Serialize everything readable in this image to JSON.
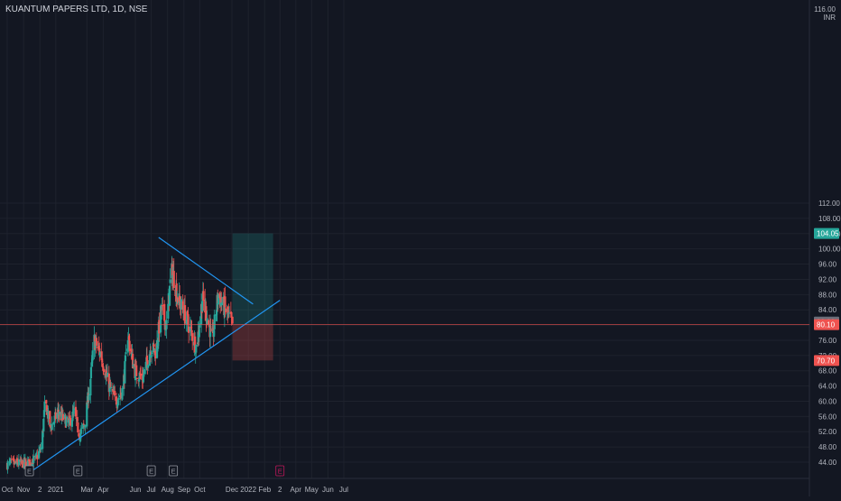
{
  "header": {
    "symbol_title": "KUANTUM PAPERS LTD, 1D, NSE",
    "top_price_label": "116.00",
    "currency": "INR"
  },
  "chart_data": {
    "type": "candlestick",
    "timeframe": "1D",
    "exchange": "NSE",
    "ylim": [
      42,
      116
    ],
    "y_ticks": [
      44,
      48,
      52,
      56,
      60,
      64,
      68,
      72,
      76,
      80,
      84,
      88,
      92,
      96,
      100,
      104,
      108,
      112
    ],
    "x_ticks": [
      "Oct",
      "Nov",
      "2",
      "2021",
      "Mar",
      "Apr",
      "Jun",
      "Jul",
      "Aug",
      "Sep",
      "Oct",
      "Dec",
      "2022",
      "Feb",
      "2",
      "Apr",
      "May",
      "Jun",
      "Jul"
    ],
    "x_tick_dates": [
      "2020-10-01",
      "2020-11-01",
      "2020-12-02",
      "2021-01-01",
      "2021-03-01",
      "2021-04-01",
      "2021-06-01",
      "2021-07-01",
      "2021-08-01",
      "2021-09-01",
      "2021-10-01",
      "2021-12-01",
      "2022-01-01",
      "2022-02-01",
      "2022-03-02",
      "2022-04-01",
      "2022-05-01",
      "2022-06-01",
      "2022-07-01"
    ],
    "earnings_markers": [
      "2020-11-12",
      "2021-02-12",
      "2021-07-01",
      "2021-08-12",
      "2022-03-02"
    ],
    "earnings_label": "E",
    "price_path": [
      [
        "2020-10-01",
        43.5
      ],
      [
        "2020-11-10",
        43.8
      ],
      [
        "2020-11-25",
        45.0
      ],
      [
        "2020-12-05",
        48.0
      ],
      [
        "2020-12-12",
        60.0
      ],
      [
        "2020-12-22",
        53.0
      ],
      [
        "2021-01-05",
        57.0
      ],
      [
        "2021-01-25",
        54.0
      ],
      [
        "2021-02-05",
        57.0
      ],
      [
        "2021-02-15",
        51.0
      ],
      [
        "2021-02-25",
        54.0
      ],
      [
        "2021-03-08",
        66.0
      ],
      [
        "2021-03-15",
        76.0
      ],
      [
        "2021-03-28",
        72.0
      ],
      [
        "2021-04-12",
        64.0
      ],
      [
        "2021-04-25",
        60.0
      ],
      [
        "2021-05-08",
        63.0
      ],
      [
        "2021-05-18",
        77.0
      ],
      [
        "2021-05-30",
        68.0
      ],
      [
        "2021-06-15",
        66.0
      ],
      [
        "2021-06-30",
        74.0
      ],
      [
        "2021-07-10",
        73.0
      ],
      [
        "2021-07-20",
        84.0
      ],
      [
        "2021-07-30",
        80.0
      ],
      [
        "2021-08-08",
        94.0
      ],
      [
        "2021-08-14",
        92.0
      ],
      [
        "2021-08-20",
        87.0
      ],
      [
        "2021-09-05",
        82.0
      ],
      [
        "2021-09-15",
        78.0
      ],
      [
        "2021-09-25",
        74.0
      ],
      [
        "2021-10-06",
        87.0
      ],
      [
        "2021-10-15",
        82.0
      ],
      [
        "2021-10-25",
        76.0
      ],
      [
        "2021-11-05",
        88.0
      ],
      [
        "2021-11-15",
        85.0
      ],
      [
        "2021-11-25",
        82.0
      ],
      [
        "2021-12-02",
        80.1
      ]
    ],
    "trendlines": [
      {
        "name": "support",
        "from": [
          "2020-11-20",
          42.0
        ],
        "to": [
          "2022-03-02",
          86.5
        ]
      },
      {
        "name": "resistance",
        "from": [
          "2021-07-15",
          103.0
        ],
        "to": [
          "2022-01-10",
          85.5
        ]
      }
    ],
    "position": {
      "type": "long",
      "start_date": "2021-12-02",
      "end_date": "2022-02-17",
      "entry": 80.1,
      "target": 104.05,
      "stop": 70.7
    },
    "price_labels": [
      {
        "value": "104.05",
        "price": 104.05,
        "color": "#26a69a"
      },
      {
        "value": "80.30",
        "price": 80.8,
        "color": "#6a6d78"
      },
      {
        "value": "80.10",
        "price": 80.1,
        "color": "#ef5350"
      },
      {
        "value": "70.70",
        "price": 70.7,
        "color": "#ef5350"
      }
    ],
    "colors": {
      "background": "#131722",
      "up": "#26a69a",
      "down": "#ef5350",
      "trendline": "#2196f3",
      "target_zone": "#26a69a",
      "stop_zone": "#ef5350",
      "grid": "#1e222d",
      "axis_text": "#b2b5be"
    }
  }
}
